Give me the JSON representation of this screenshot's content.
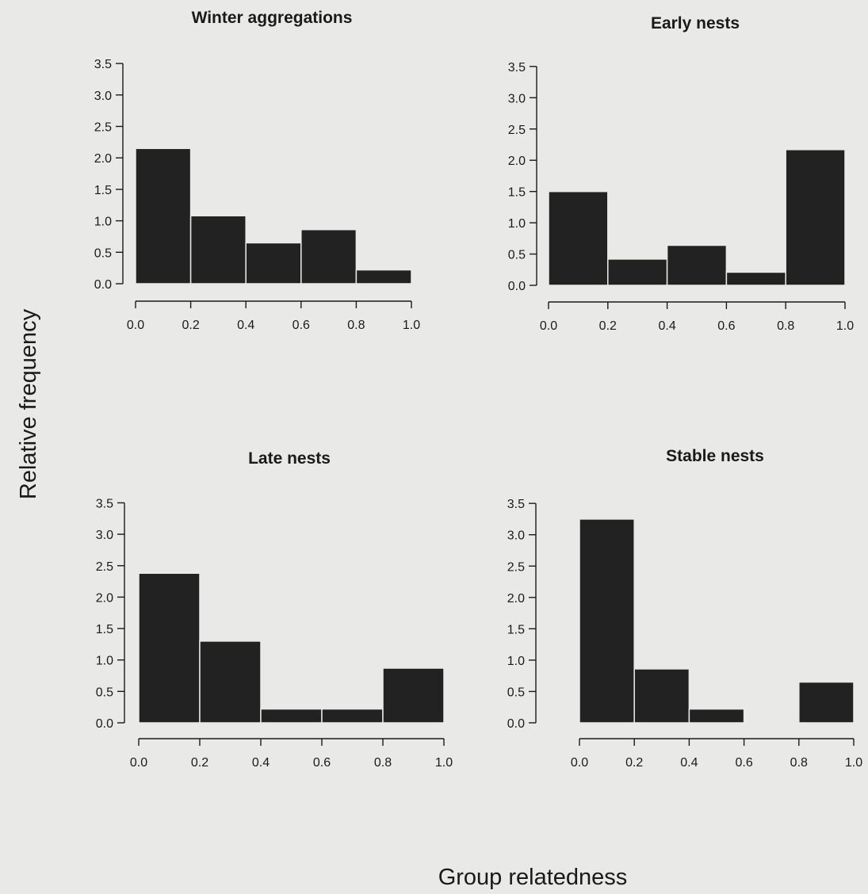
{
  "figure": {
    "ylabel": "Relative frequency",
    "xlabel": "Group relatedness"
  },
  "chart_data": [
    {
      "type": "bar",
      "title": "Winter aggregations",
      "bins": [
        [
          0.0,
          0.2
        ],
        [
          0.2,
          0.4
        ],
        [
          0.4,
          0.6
        ],
        [
          0.6,
          0.8
        ],
        [
          0.8,
          1.0
        ]
      ],
      "values": [
        2.15,
        1.08,
        0.65,
        0.86,
        0.22
      ],
      "xlim": [
        0.0,
        1.0
      ],
      "ylim": [
        0.0,
        3.5
      ],
      "xticks": [
        "0.0",
        "0.2",
        "0.4",
        "0.6",
        "0.8",
        "1.0"
      ],
      "yticks": [
        "0.0",
        "0.5",
        "1.0",
        "1.5",
        "2.0",
        "2.5",
        "3.0",
        "3.5"
      ]
    },
    {
      "type": "bar",
      "title": "Early nests",
      "bins": [
        [
          0.0,
          0.2
        ],
        [
          0.2,
          0.4
        ],
        [
          0.4,
          0.6
        ],
        [
          0.6,
          0.8
        ],
        [
          0.8,
          1.0
        ]
      ],
      "values": [
        1.5,
        0.42,
        0.64,
        0.21,
        2.17
      ],
      "xlim": [
        0.0,
        1.0
      ],
      "ylim": [
        0.0,
        3.5
      ],
      "xticks": [
        "0.0",
        "0.2",
        "0.4",
        "0.6",
        "0.8",
        "1.0"
      ],
      "yticks": [
        "0.0",
        "0.5",
        "1.0",
        "1.5",
        "2.0",
        "2.5",
        "3.0",
        "3.5"
      ]
    },
    {
      "type": "bar",
      "title": "Late nests",
      "bins": [
        [
          0.0,
          0.2
        ],
        [
          0.2,
          0.4
        ],
        [
          0.4,
          0.6
        ],
        [
          0.6,
          0.8
        ],
        [
          0.8,
          1.0
        ]
      ],
      "values": [
        2.38,
        1.3,
        0.22,
        0.22,
        0.87
      ],
      "xlim": [
        0.0,
        1.0
      ],
      "ylim": [
        0.0,
        3.5
      ],
      "xticks": [
        "0.0",
        "0.2",
        "0.4",
        "0.6",
        "0.8",
        "1.0"
      ],
      "yticks": [
        "0.0",
        "0.5",
        "1.0",
        "1.5",
        "2.0",
        "2.5",
        "3.0",
        "3.5"
      ]
    },
    {
      "type": "bar",
      "title": "Stable nests",
      "bins": [
        [
          0.0,
          0.2
        ],
        [
          0.2,
          0.4
        ],
        [
          0.4,
          0.6
        ],
        [
          0.6,
          0.8
        ],
        [
          0.8,
          1.0
        ]
      ],
      "values": [
        3.25,
        0.86,
        0.22,
        0.0,
        0.65
      ],
      "xlim": [
        0.0,
        1.0
      ],
      "ylim": [
        0.0,
        3.5
      ],
      "xticks": [
        "0.0",
        "0.2",
        "0.4",
        "0.6",
        "0.8",
        "1.0"
      ],
      "yticks": [
        "0.0",
        "0.5",
        "1.0",
        "1.5",
        "2.0",
        "2.5",
        "3.0",
        "3.5"
      ]
    }
  ]
}
